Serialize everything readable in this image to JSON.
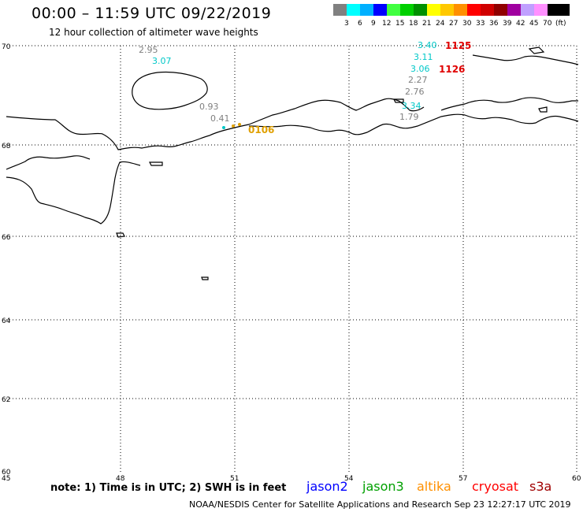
{
  "header": {
    "title": "00:00 – 11:59 UTC 09/22/2019",
    "subtitle": "12 hour collection of altimeter wave heights"
  },
  "scale": {
    "unit": "(ft)",
    "bins": [
      {
        "label": "3",
        "color": "#808080"
      },
      {
        "label": "6",
        "color": "#00ffff"
      },
      {
        "label": "9",
        "color": "#00b0ff"
      },
      {
        "label": "12",
        "color": "#0000ff"
      },
      {
        "label": "15",
        "color": "#40ff40"
      },
      {
        "label": "18",
        "color": "#00d000"
      },
      {
        "label": "21",
        "color": "#009000"
      },
      {
        "label": "24",
        "color": "#ffff00"
      },
      {
        "label": "27",
        "color": "#ffc800"
      },
      {
        "label": "30",
        "color": "#ff9000"
      },
      {
        "label": "33",
        "color": "#ff0000"
      },
      {
        "label": "36",
        "color": "#d00000"
      },
      {
        "label": "39",
        "color": "#900000"
      },
      {
        "label": "42",
        "color": "#a000a0"
      },
      {
        "label": "45",
        "color": "#c0a0ff"
      },
      {
        "label": "70",
        "color": "#ff90ff"
      },
      {
        "label": "",
        "color": "#000000"
      }
    ]
  },
  "axes": {
    "lat_labels": [
      "70",
      "68",
      "66",
      "64",
      "62",
      "60"
    ],
    "lon_labels": [
      "45",
      "48",
      "51",
      "54",
      "57",
      "60"
    ]
  },
  "measurements": [
    {
      "value": "2.95",
      "color": "#808080"
    },
    {
      "value": "3.07",
      "color": "#00c8c8"
    },
    {
      "value": "0.93",
      "color": "#808080"
    },
    {
      "value": "0.41",
      "color": "#808080"
    },
    {
      "value": "3.40",
      "color": "#00c8c8"
    },
    {
      "value": "3.11",
      "color": "#00c8c8"
    },
    {
      "value": "3.06",
      "color": "#00c8c8"
    },
    {
      "value": "2.27",
      "color": "#808080"
    },
    {
      "value": "2.76",
      "color": "#808080"
    },
    {
      "value": "3.34",
      "color": "#00c8c8"
    },
    {
      "value": "1.79",
      "color": "#808080"
    }
  ],
  "time_labels": [
    {
      "value": "1125",
      "color": "#e00000"
    },
    {
      "value": "1126",
      "color": "#e00000"
    },
    {
      "value": "0106",
      "color": "#e0a000"
    }
  ],
  "footer": {
    "note": "note:  1) Time is in UTC;  2) SWH is in feet",
    "satellites": [
      {
        "name": "jason2",
        "color": "#0000ff"
      },
      {
        "name": "jason3",
        "color": "#00a000"
      },
      {
        "name": "altika",
        "color": "#ff9000"
      },
      {
        "name": "cryosat",
        "color": "#ff0000"
      },
      {
        "name": "s3a",
        "color": "#a00000"
      }
    ],
    "credit": "NOAA/NESDIS Center for Satellite Applications and Research     Sep 23 12:27:17 UTC 2019"
  }
}
